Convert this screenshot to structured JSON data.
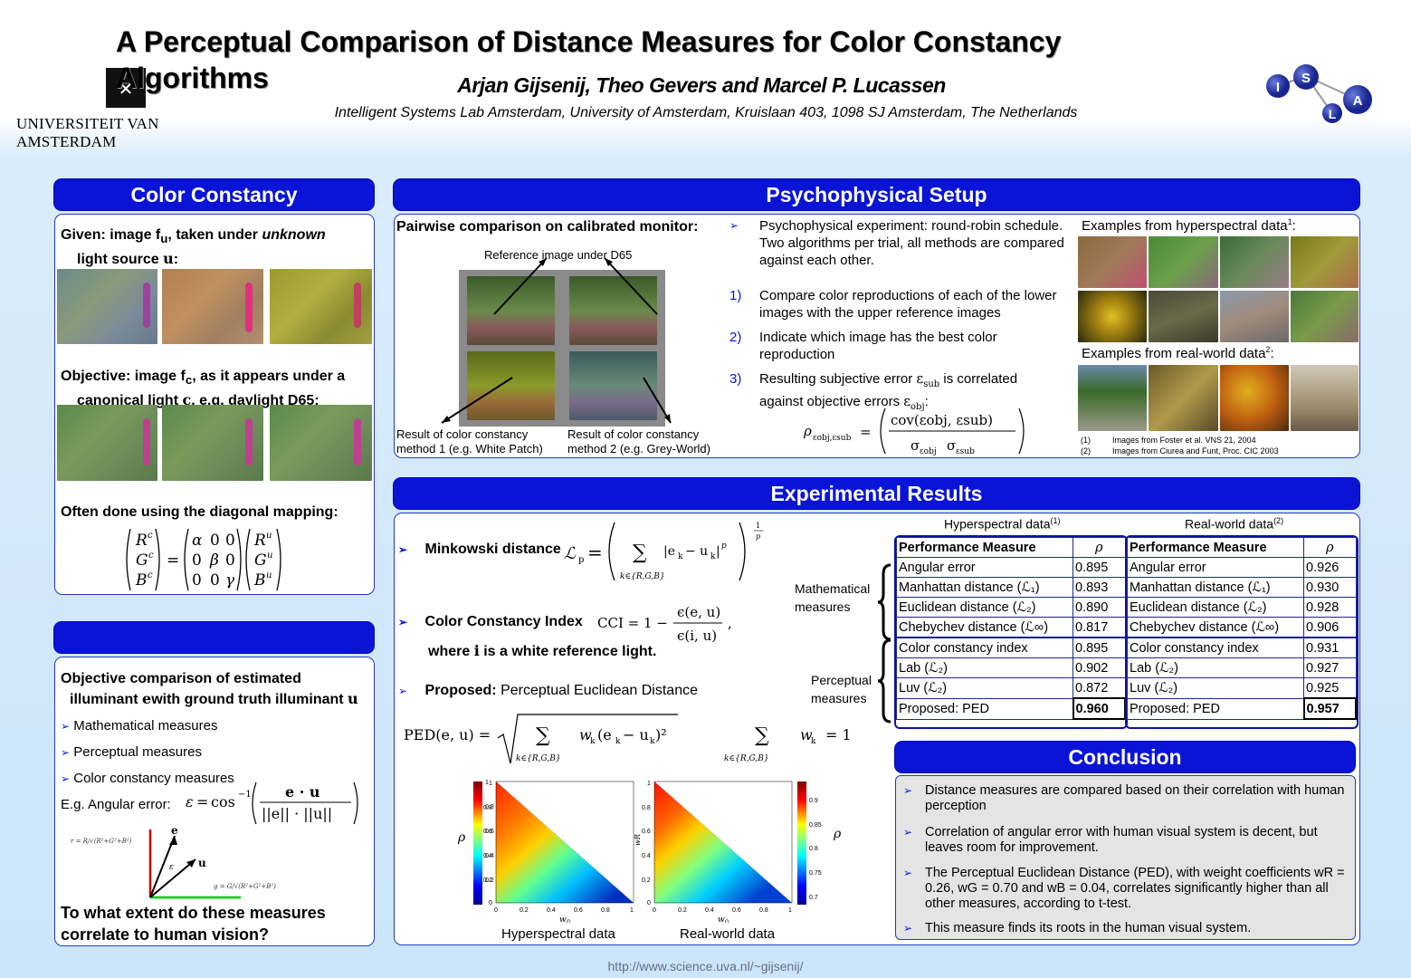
{
  "header": {
    "title": "A Perceptual Comparison of Distance Measures for Color Constancy Algorithms",
    "authors": "Arjan Gijsenij, Theo Gevers and Marcel P. Lucassen",
    "affiliation": "Intelligent Systems Lab Amsterdam, University of Amsterdam, Kruislaan 403, 1098 SJ  Amsterdam, The Netherlands",
    "uva_name": "UNIVERSITEIT VAN AMSTERDAM",
    "isla_letters": [
      "I",
      "S",
      "L",
      "A"
    ]
  },
  "color_constancy": {
    "title": "Color Constancy",
    "given_label": "Given:",
    "given_text_1": " image f",
    "given_sub": "u",
    "given_text_2": ", taken under ",
    "given_unknown": "unknown",
    "given_text_3": "light source ",
    "given_var": "u",
    "given_colon": ":",
    "objective_label": "Objective:",
    "objective_text_1": " image f",
    "objective_sub": "c",
    "objective_text_2": ", as it appears under a",
    "objective_text_3": "canonical light ",
    "objective_var": "c",
    "objective_text_4": ", e.g. daylight D65:",
    "diag_text": "Often done using the diagonal mapping:"
  },
  "evaluation": {
    "title": "",
    "intro_1": "Objective comparison of estimated",
    "intro_2": "illuminant ",
    "intro_var_e": "e",
    "intro_3": "with ground truth illuminant ",
    "intro_var_u": "u",
    "items": [
      "Mathematical measures",
      "Perceptual measures",
      "Color constancy measures"
    ],
    "angular_label": "E.g. Angular error:",
    "question": "To what extent do these measures correlate to human vision?"
  },
  "setup": {
    "title": "Psychophysical Setup",
    "pairwise_label": "Pairwise comparison on calibrated monitor:",
    "reference_label": "Reference image under D65",
    "method1": "Result of color constancy method 1 (e.g. White Patch)",
    "method2": "Result of color constancy method 2 (e.g. Grey-World)",
    "intro": "Psychophysical experiment: round-robin schedule. Two algorithms per trial, all methods are compared against each other.",
    "steps": [
      {
        "num": "1)",
        "text": "Compare color reproductions of each of the lower images with the upper reference images"
      },
      {
        "num": "2)",
        "text": "Indicate which image has the best color reproduction"
      },
      {
        "num": "3)",
        "text": "Resulting subjective error"
      },
      {
        "num": "",
        "text": "is correlated"
      },
      {
        "num": "",
        "text": "against objective errors"
      }
    ],
    "hyper_label": "Examples from hyperspectral data",
    "hyper_sup": "1",
    "real_label": "Examples from real-world data",
    "real_sup": "2",
    "refs": [
      {
        "num": "(1)",
        "text": "Images from Foster et al. VNS 21, 2004"
      },
      {
        "num": "(2)",
        "text": "Images from Ciurea and Funt, Proc. CIC 2003"
      }
    ]
  },
  "results": {
    "title": "Experimental Results",
    "minkowski": "Minkowski distance",
    "cci_label": "Color Constancy Index",
    "cci_where": "where ",
    "cci_where_var": "i",
    "cci_where_rest": " is a white reference light.",
    "proposed_bold": "Proposed:",
    "proposed_rest": " Perceptual Euclidean Distance",
    "hyper_table_title": "Hyperspectral data",
    "hyper_table_sup": "(1)",
    "real_table_title": "Real-world data",
    "real_table_sup": "(2)",
    "col_measure": "Performance Measure",
    "col_rho": "ρ",
    "group_math": "Mathematical measures",
    "group_perc": "Perceptual measures",
    "rows": [
      {
        "name": "Angular error",
        "hyper": "0.895",
        "real": "0.926"
      },
      {
        "name": "Manhattan distance (ℒ₁)",
        "hyper": "0.893",
        "real": "0.930"
      },
      {
        "name": "Euclidean distance (ℒ₂)",
        "hyper": "0.890",
        "real": "0.928"
      },
      {
        "name": "Chebychev distance (ℒ∞)",
        "hyper": "0.817",
        "real": "0.906"
      },
      {
        "name": "Color constancy index",
        "hyper": "0.895",
        "real": "0.931"
      },
      {
        "name": "Lab (ℒ₂)",
        "hyper": "0.902",
        "real": "0.927"
      },
      {
        "name": "Luv (ℒ₂)",
        "hyper": "0.872",
        "real": "0.925"
      },
      {
        "name": "Proposed: PED",
        "hyper": "0.960",
        "real": "0.957"
      }
    ],
    "plot1_caption": "Hyperspectral data",
    "plot2_caption": "Real-world data",
    "plot1_xticks": [
      "0",
      "0.2",
      "0.4",
      "0.6",
      "0.8",
      "1"
    ],
    "plot1_yticks": [
      "1",
      "0.8",
      "0.6",
      "0.4",
      "0.2",
      "0"
    ],
    "plot2_xticks": [
      "0",
      "0.2",
      "0.4",
      "0.6",
      "0.8",
      "1"
    ],
    "plot2_yticks": [
      "1",
      "0.8",
      "0.6",
      "0.4",
      "0.2",
      "0"
    ],
    "plot1_colorbar": [
      "1",
      "0.8",
      "0.6",
      "0.4",
      "0.2"
    ],
    "plot2_colorbar": [
      "0.9",
      "0.85",
      "0.8",
      "0.75",
      "0.7"
    ],
    "xlabel": "w",
    "xlabel_sub": "G",
    "ylabel": "w",
    "ylabel_sub": "R",
    "rho": "ρ"
  },
  "conclusion": {
    "title": "Conclusion",
    "items": [
      "Distance measures are compared based on their correlation with human perception",
      "Correlation of angular error with human visual system is decent, but leaves room for improvement.",
      "The Perceptual Euclidean Distance (PED), with weight coefficients wR = 0.26, wG = 0.70 and wB = 0.04, correlates significantly higher than all other measures, according to t-test.",
      "This measure finds its roots in the human visual system."
    ]
  },
  "footer_url": "http://www.science.uva.nl/~gijsenij/",
  "colors": {
    "header_blue": "#0a14d6",
    "panel_border": "#2536c4",
    "background": "#cbe5fa"
  }
}
